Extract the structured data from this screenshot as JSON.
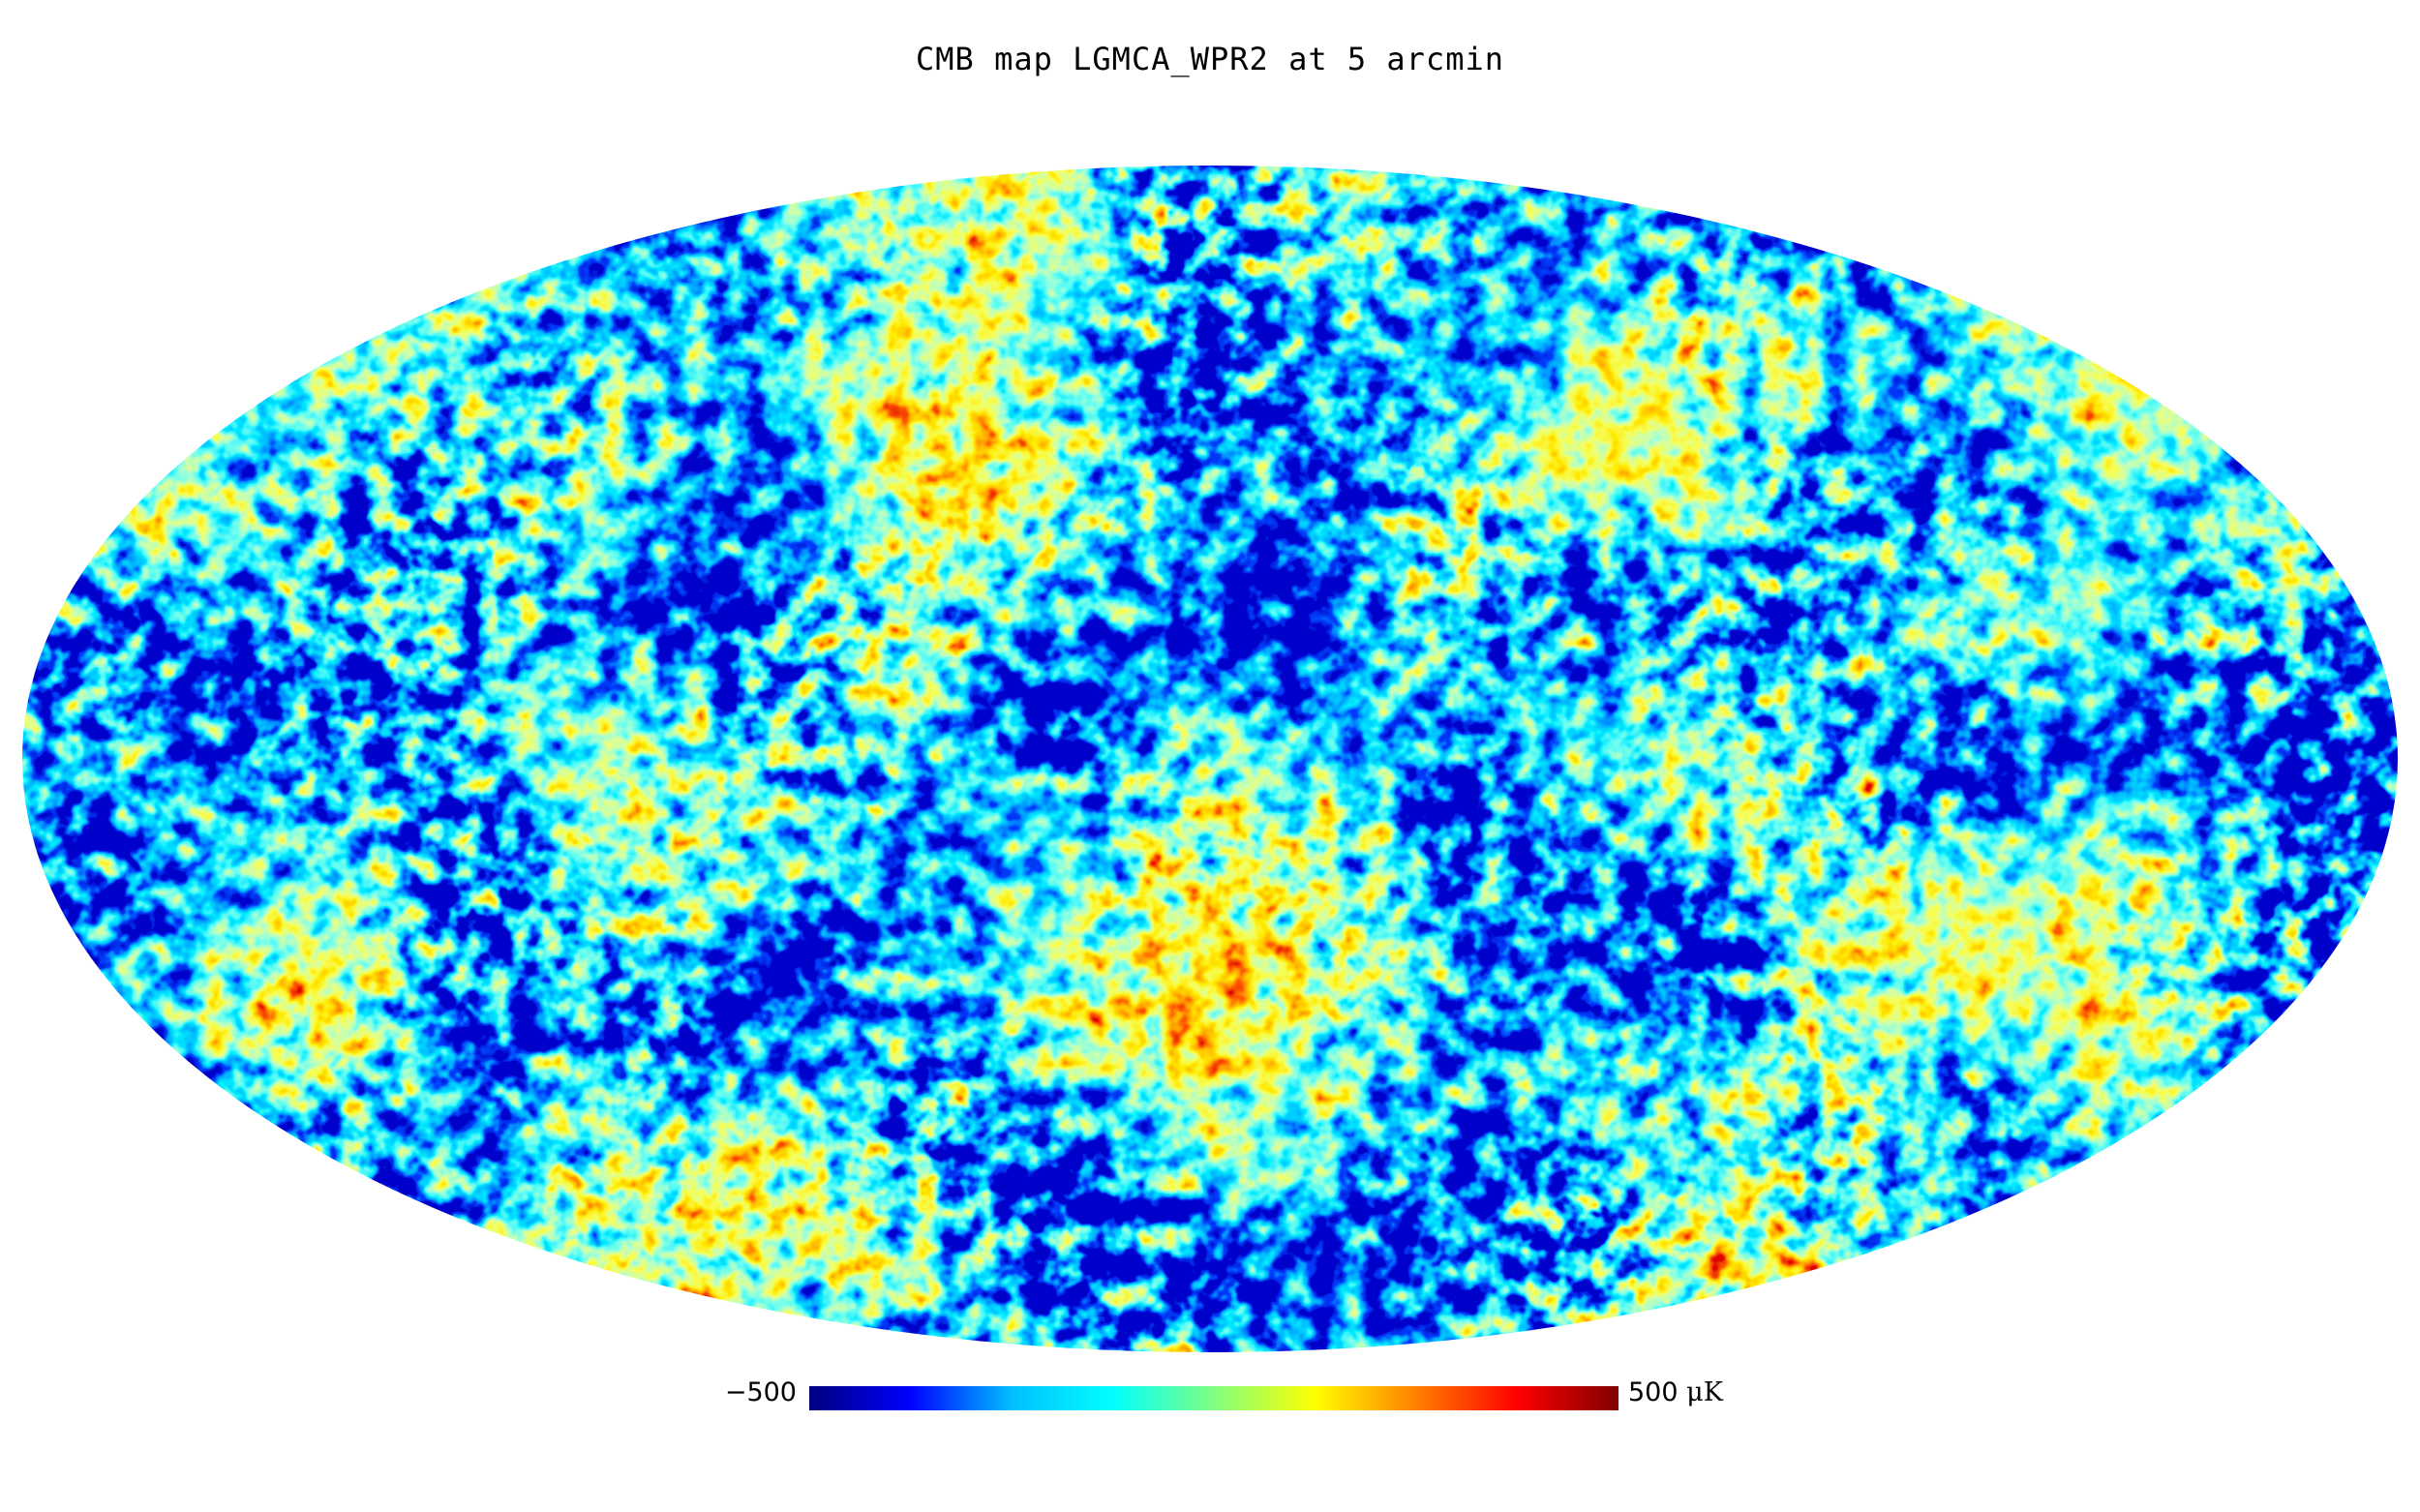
{
  "title": "CMB map LGMCA_WPR2 at 5 arcmin",
  "map": {
    "projection": "mollweide",
    "quantity": "CMB temperature anisotropy",
    "colormap": "jet",
    "colormap_stops": [
      "#00007f",
      "#0000ff",
      "#00bfff",
      "#00ffff",
      "#80ff80",
      "#ffff00",
      "#ff8000",
      "#ff0000",
      "#7f0000"
    ]
  },
  "colorbar": {
    "min_label": "−500",
    "max_label": "500",
    "unit_label": "μK",
    "min": -500,
    "max": 500
  }
}
